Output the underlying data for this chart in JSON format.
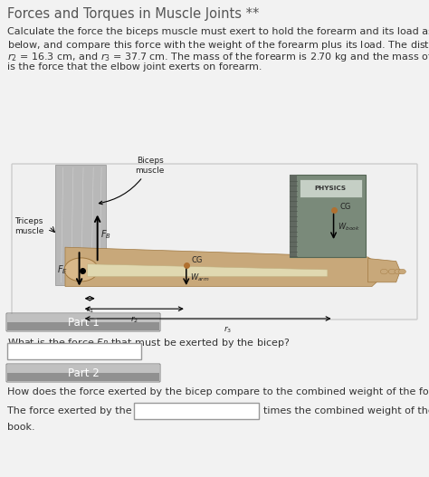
{
  "title": "Forces and Torques in Muscle Joints **",
  "title_fontsize": 10.5,
  "body_fontsize": 8.0,
  "bg_color": "#f2f2f2",
  "part1_label": "Part 1",
  "part2_label": "Part 2",
  "part1_question": "What is the force $F_B$ that must be exerted by the bicep?",
  "part2_question": "How does the force exerted by the bicep compare to the combined weight of the forearm and the book?",
  "part2_answer_prefix": "The force exerted by the bicep is",
  "part2_answer_suffix": "times the combined weight of the forearm and",
  "part2_book": "book.",
  "fig_bg": "#e8e8e8",
  "box_color_top": "#b0b0b0",
  "box_color_bot": "#909090",
  "box_text_color": "#ffffff"
}
